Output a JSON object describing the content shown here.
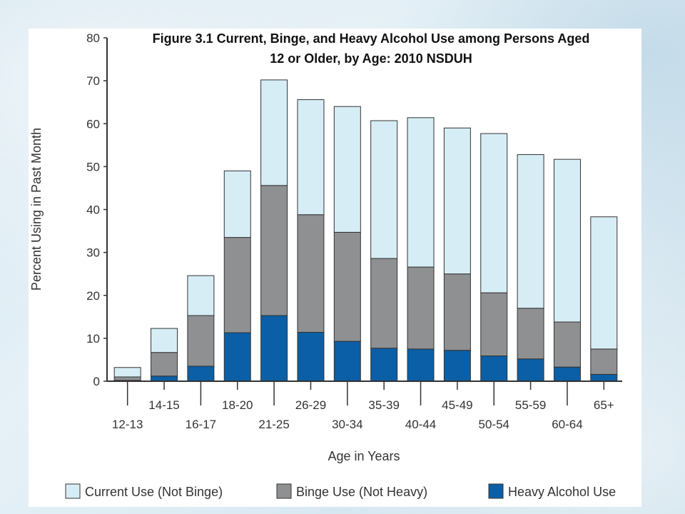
{
  "chart_data": {
    "type": "bar",
    "stacked": true,
    "title_line1": "Figure 3.1 Current, Binge, and Heavy Alcohol Use among Persons Aged",
    "title_line2": "12 or Older, by Age: 2010 NSDUH",
    "xlabel": "Age in Years",
    "ylabel": "Percent Using in Past Month",
    "ylim": [
      0,
      80
    ],
    "yticks": [
      0,
      10,
      20,
      30,
      40,
      50,
      60,
      70,
      80
    ],
    "grid": false,
    "legend_position": "bottom",
    "categories": [
      "12-13",
      "14-15",
      "16-17",
      "18-20",
      "21-25",
      "26-29",
      "30-34",
      "35-39",
      "40-44",
      "45-49",
      "50-54",
      "55-59",
      "60-64",
      "65+"
    ],
    "series": [
      {
        "name": "Heavy Alcohol Use",
        "color": "#0a5fa6",
        "values": [
          0.2,
          1.2,
          3.5,
          11.3,
          15.3,
          11.4,
          9.3,
          7.7,
          7.5,
          7.2,
          5.9,
          5.2,
          3.3,
          1.6
        ]
      },
      {
        "name": "Binge Use (Not Heavy)",
        "color": "#8f9092",
        "values": [
          0.8,
          5.5,
          11.8,
          22.2,
          30.3,
          27.4,
          25.4,
          20.9,
          19.1,
          17.8,
          14.7,
          11.8,
          10.5,
          5.9
        ]
      },
      {
        "name": "Current Use (Not Binge)",
        "color": "#d6edf5",
        "values": [
          2.2,
          5.6,
          9.3,
          15.5,
          24.6,
          26.8,
          29.3,
          32.1,
          34.8,
          34.0,
          37.1,
          35.8,
          37.9,
          30.8
        ]
      }
    ],
    "legend_order": [
      "Current Use (Not Binge)",
      "Binge Use (Not Heavy)",
      "Heavy Alcohol Use"
    ]
  }
}
